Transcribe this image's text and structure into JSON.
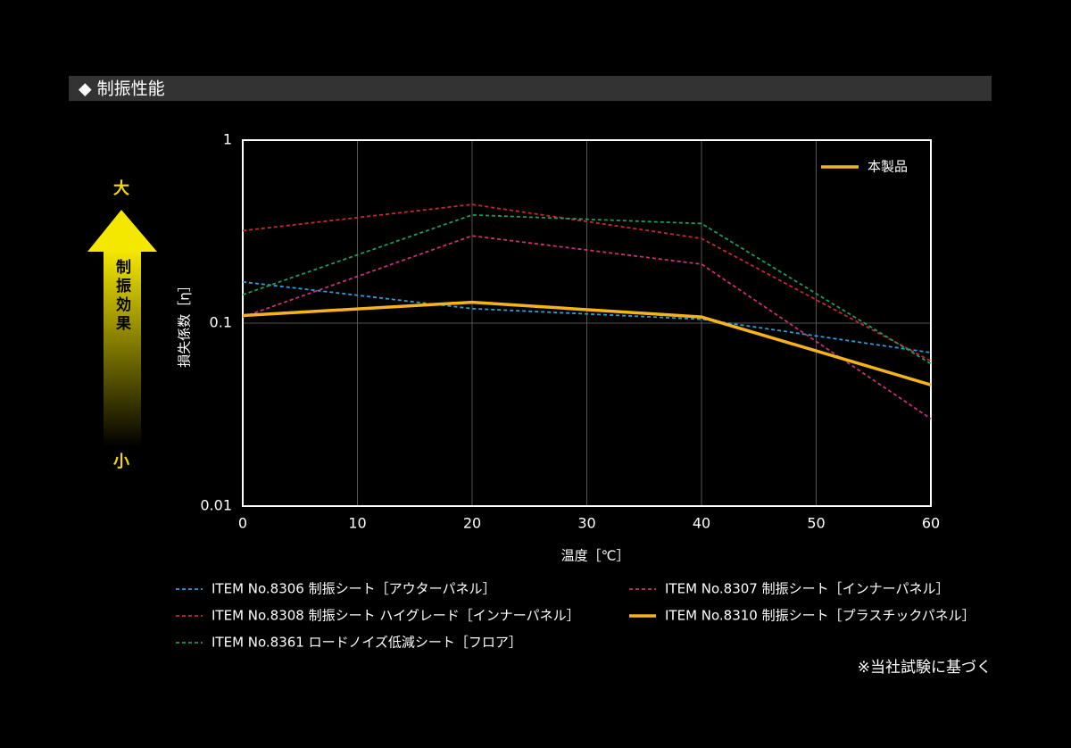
{
  "header": {
    "title": "◆ 制振性能"
  },
  "scale_indicator": {
    "high": "大",
    "label": "制振効果",
    "low": "小"
  },
  "note": "※当社試験に基づく",
  "chart_data": {
    "type": "line",
    "x_label": "温度［℃］",
    "y_label": "損失係数［η］",
    "inset_legend": "本製品",
    "x": [
      0,
      20,
      40,
      60
    ],
    "xlim": [
      0,
      60
    ],
    "xticks": [
      0,
      10,
      20,
      30,
      40,
      50,
      60
    ],
    "ylim": [
      0.01,
      1
    ],
    "yticks": [
      1,
      0.1,
      0.01
    ],
    "log_y": true,
    "grid": true,
    "series": [
      {
        "name": "ITEM No.8306 制振シート［アウターパネル］",
        "color": "#2a9fd8",
        "style": "dashed",
        "values": [
          0.168,
          0.12,
          0.105,
          0.069
        ]
      },
      {
        "name": "ITEM No.8307 制振シート［インナーパネル］",
        "color": "#c8307a",
        "style": "dashed",
        "values": [
          0.108,
          0.3,
          0.21,
          0.03
        ]
      },
      {
        "name": "ITEM No.8308 制振シート ハイグレード［インナーパネル］",
        "color": "#c8282e",
        "style": "dashed",
        "values": [
          0.32,
          0.445,
          0.29,
          0.062
        ]
      },
      {
        "name": "ITEM No.8310 制振シート［プラスチックパネル］",
        "color": "#f5b41e",
        "style": "solid",
        "values": [
          0.11,
          0.13,
          0.108,
          0.046
        ]
      },
      {
        "name": "ITEM No.8361 ロードノイズ低減シート［フロア］",
        "color": "#1e9a5c",
        "style": "dashed",
        "values": [
          0.143,
          0.39,
          0.35,
          0.06
        ]
      }
    ]
  }
}
